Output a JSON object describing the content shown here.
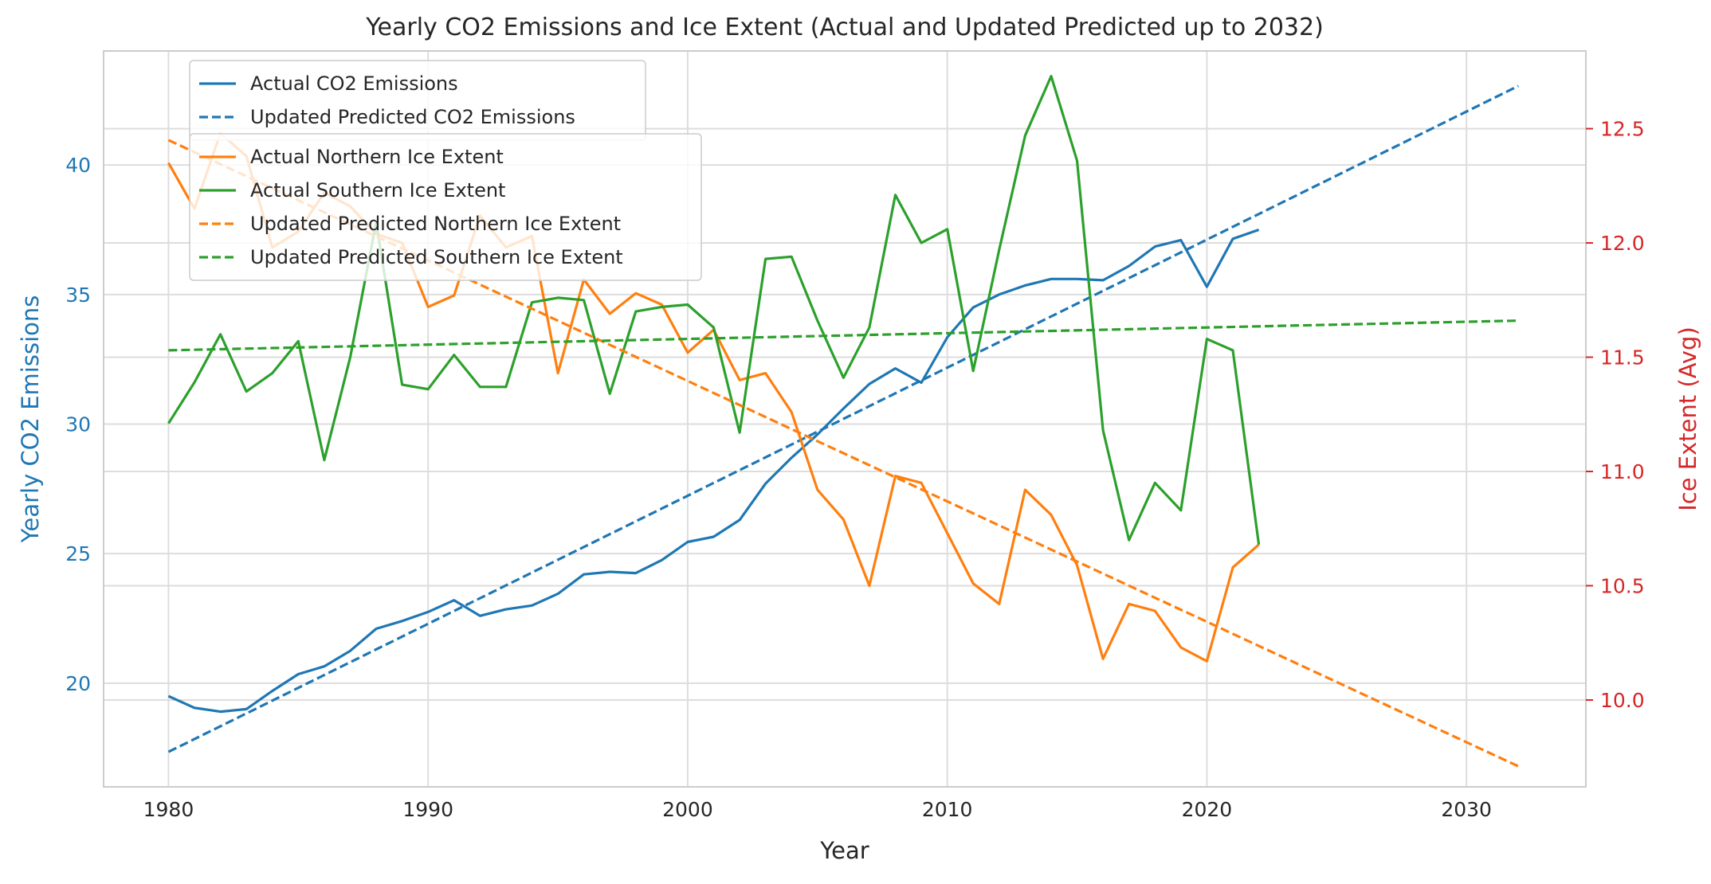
{
  "chart_data": {
    "type": "line",
    "title": "Yearly CO2 Emissions and Ice Extent (Actual and Updated Predicted up to 2032)",
    "xlabel": "Year",
    "ylabel_left": "Yearly CO2 Emissions",
    "ylabel_right": "Ice Extent (Avg)",
    "xlim": [
      1977.5,
      2034.6
    ],
    "ylim_left": [
      16.0,
      44.4
    ],
    "ylim_right": [
      9.62,
      12.84
    ],
    "xticks": [
      1980,
      1990,
      2000,
      2010,
      2020,
      2030
    ],
    "yticks_left": [
      20,
      25,
      30,
      35,
      40
    ],
    "yticks_right": [
      10.0,
      10.5,
      11.0,
      11.5,
      12.0,
      12.5
    ],
    "ytick_labels_right": [
      "10.0",
      "10.5",
      "11.0",
      "11.5",
      "12.0",
      "12.5"
    ],
    "grid": true,
    "colors": {
      "co2": "#1f77b4",
      "north": "#ff7f0e",
      "south": "#2ca02c",
      "right_axis": "#d62728",
      "grid": "#dddddd",
      "text": "#262626"
    },
    "legend_co2": [
      {
        "name": "Actual CO2 Emissions",
        "color": "#1f77b4",
        "style": "solid"
      },
      {
        "name": "Updated Predicted CO2 Emissions",
        "color": "#1f77b4",
        "style": "dashed"
      }
    ],
    "legend_ice": [
      {
        "name": "Actual Northern Ice Extent",
        "color": "#ff7f0e",
        "style": "solid"
      },
      {
        "name": "Actual Southern Ice Extent",
        "color": "#2ca02c",
        "style": "solid"
      },
      {
        "name": "Updated Predicted Northern Ice Extent",
        "color": "#ff7f0e",
        "style": "dashed"
      },
      {
        "name": "Updated Predicted Southern Ice Extent",
        "color": "#2ca02c",
        "style": "dashed"
      }
    ],
    "series": [
      {
        "name": "Actual CO2 Emissions",
        "axis": "left",
        "color": "#1f77b4",
        "style": "solid",
        "x": [
          1980,
          1981,
          1982,
          1983,
          1984,
          1985,
          1986,
          1987,
          1988,
          1989,
          1990,
          1991,
          1992,
          1993,
          1994,
          1995,
          1996,
          1997,
          1998,
          1999,
          2000,
          2001,
          2002,
          2003,
          2004,
          2005,
          2006,
          2007,
          2008,
          2009,
          2010,
          2011,
          2012,
          2013,
          2014,
          2015,
          2016,
          2017,
          2018,
          2019,
          2020,
          2021,
          2022
        ],
        "values": [
          19.5,
          19.05,
          18.9,
          19.0,
          19.7,
          20.35,
          20.65,
          21.25,
          22.1,
          22.4,
          22.75,
          23.2,
          22.6,
          22.85,
          23.0,
          23.45,
          24.2,
          24.3,
          24.25,
          24.75,
          25.45,
          25.65,
          26.3,
          27.7,
          28.7,
          29.6,
          30.6,
          31.55,
          32.15,
          31.6,
          33.35,
          34.5,
          35.0,
          35.35,
          35.6,
          35.6,
          35.55,
          36.1,
          36.85,
          37.1,
          35.3,
          37.15,
          37.5
        ]
      },
      {
        "name": "Updated Predicted CO2 Emissions",
        "axis": "left",
        "color": "#1f77b4",
        "style": "dashed",
        "x": [
          1980,
          2032
        ],
        "values": [
          17.35,
          43.05
        ]
      },
      {
        "name": "Actual Northern Ice Extent",
        "axis": "right",
        "color": "#ff7f0e",
        "style": "solid",
        "x": [
          1980,
          1981,
          1982,
          1983,
          1984,
          1985,
          1986,
          1987,
          1988,
          1989,
          1990,
          1991,
          1992,
          1993,
          1994,
          1995,
          1996,
          1997,
          1998,
          1999,
          2000,
          2001,
          2002,
          2003,
          2004,
          2005,
          2006,
          2007,
          2008,
          2009,
          2010,
          2011,
          2012,
          2013,
          2014,
          2015,
          2016,
          2017,
          2018,
          2019,
          2020,
          2021,
          2022
        ],
        "values": [
          12.35,
          12.15,
          12.48,
          12.38,
          11.98,
          12.05,
          12.22,
          12.16,
          12.04,
          12.0,
          11.72,
          11.77,
          12.12,
          11.98,
          12.03,
          11.43,
          11.84,
          11.69,
          11.78,
          11.73,
          11.52,
          11.62,
          11.4,
          11.43,
          11.26,
          10.92,
          10.79,
          10.5,
          10.98,
          10.95,
          10.73,
          10.51,
          10.42,
          10.92,
          10.81,
          10.59,
          10.18,
          10.42,
          10.39,
          10.23,
          10.17,
          10.58,
          10.68
        ]
      },
      {
        "name": "Actual Southern Ice Extent",
        "axis": "right",
        "color": "#2ca02c",
        "style": "solid",
        "x": [
          1980,
          1981,
          1982,
          1983,
          1984,
          1985,
          1986,
          1987,
          1988,
          1989,
          1990,
          1991,
          1992,
          1993,
          1994,
          1995,
          1996,
          1997,
          1998,
          1999,
          2000,
          2001,
          2002,
          2003,
          2004,
          2005,
          2006,
          2007,
          2008,
          2009,
          2010,
          2011,
          2012,
          2013,
          2014,
          2015,
          2016,
          2017,
          2018,
          2019,
          2020,
          2021,
          2022
        ],
        "values": [
          11.21,
          11.39,
          11.6,
          11.35,
          11.43,
          11.57,
          11.05,
          11.5,
          12.09,
          11.38,
          11.36,
          11.51,
          11.37,
          11.37,
          11.74,
          11.76,
          11.75,
          11.34,
          11.7,
          11.72,
          11.73,
          11.63,
          11.17,
          11.93,
          11.94,
          11.66,
          11.41,
          11.63,
          12.21,
          12.0,
          12.06,
          11.44,
          11.97,
          12.47,
          12.73,
          12.36,
          11.18,
          10.7,
          10.95,
          10.83,
          11.58,
          11.53,
          10.68
        ]
      },
      {
        "name": "Updated Predicted Northern Ice Extent",
        "axis": "right",
        "color": "#ff7f0e",
        "style": "dashed",
        "x": [
          1980,
          2032
        ],
        "values": [
          12.45,
          9.71
        ]
      },
      {
        "name": "Updated Predicted Southern Ice Extent",
        "axis": "right",
        "color": "#2ca02c",
        "style": "dashed",
        "x": [
          1980,
          2032
        ],
        "values": [
          11.53,
          11.66
        ]
      }
    ]
  }
}
